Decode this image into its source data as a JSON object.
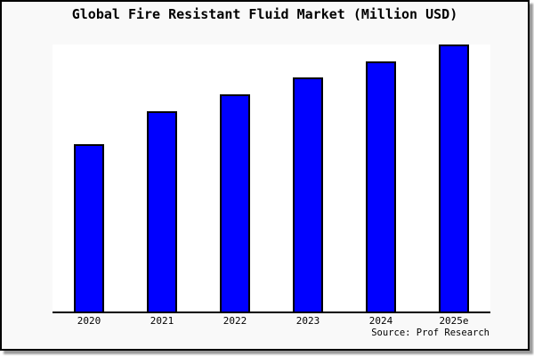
{
  "chart_data": {
    "type": "bar",
    "title": "Global Fire Resistant Fluid Market (Million USD)",
    "categories": [
      "2020",
      "2021",
      "2022",
      "2023",
      "2024",
      "2025e"
    ],
    "values": [
      62.7,
      75.0,
      81.5,
      87.7,
      93.7,
      100.0
    ],
    "units": "relative bar height, tallest bar (2025e) = 100; no y-axis tick labels shown",
    "xlabel": "",
    "ylabel": "",
    "ylim": [
      0,
      100
    ],
    "grid": false,
    "legend": null,
    "source_caption": "Source: Prof Research"
  },
  "colors": {
    "bar_fill": "#0000FF",
    "bar_border": "#000000",
    "plot_background": "#FFFFFF",
    "card_background": "#F9F9F9",
    "card_border": "#000000",
    "shadow": "#999999",
    "text": "#000000"
  }
}
